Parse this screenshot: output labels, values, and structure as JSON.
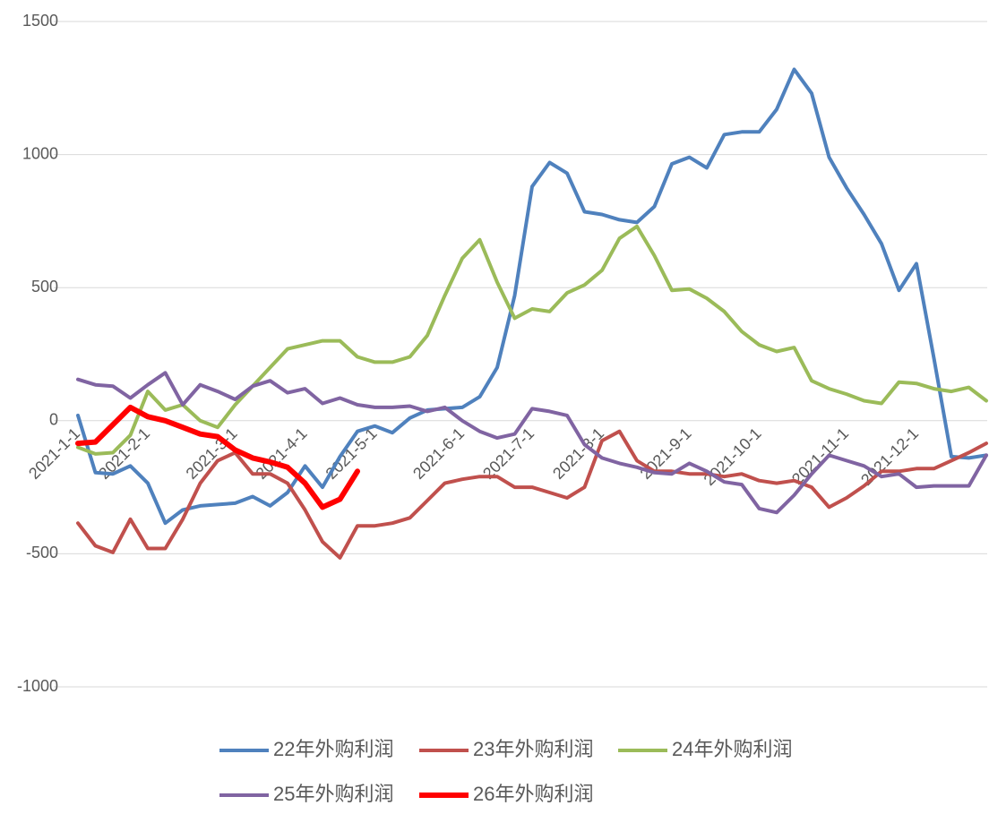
{
  "chart_data": {
    "type": "line",
    "categories": [
      "2021-1-1",
      null,
      null,
      null,
      "2021-2-1",
      null,
      null,
      null,
      null,
      "2021-3-1",
      null,
      null,
      null,
      "2021-4-1",
      null,
      null,
      null,
      "2021-5-1",
      null,
      null,
      null,
      null,
      "2021-6-1",
      null,
      null,
      null,
      "2021-7-1",
      null,
      null,
      null,
      "2021-8-1",
      null,
      null,
      null,
      null,
      "2021-9-1",
      null,
      null,
      null,
      "2021-10-1",
      null,
      null,
      null,
      null,
      "2021-11-1",
      null,
      null,
      null,
      "2021-12-1",
      null,
      null,
      null,
      null
    ],
    "series": [
      {
        "name": "22年外购利润",
        "color": "#4f81bd",
        "width": 4,
        "values": [
          20,
          -195,
          -200,
          -170,
          -235,
          -385,
          -335,
          -320,
          -315,
          -310,
          -285,
          -320,
          -270,
          -170,
          -250,
          -135,
          -40,
          -20,
          -45,
          10,
          40,
          45,
          50,
          90,
          200,
          470,
          880,
          970,
          930,
          785,
          775,
          755,
          745,
          805,
          965,
          990,
          950,
          1075,
          1085,
          1085,
          1170,
          1320,
          1230,
          990,
          875,
          775,
          665,
          490,
          590,
          235,
          -135,
          -140,
          -130
        ]
      },
      {
        "name": "23年外购利润",
        "color": "#c0504d",
        "width": 4,
        "values": [
          -385,
          -470,
          -495,
          -370,
          -480,
          -480,
          -370,
          -235,
          -150,
          -120,
          -200,
          -200,
          -235,
          -335,
          -455,
          -515,
          -395,
          -395,
          -385,
          -365,
          -300,
          -235,
          -220,
          -210,
          -210,
          -250,
          -250,
          -270,
          -290,
          -250,
          -75,
          -40,
          -150,
          -190,
          -190,
          -200,
          -200,
          -210,
          -200,
          -225,
          -235,
          -225,
          -250,
          -325,
          -290,
          -245,
          -190,
          -190,
          -180,
          -180,
          -150,
          -120,
          -85
        ]
      },
      {
        "name": "24年外购利润",
        "color": "#9bbb59",
        "width": 4,
        "values": [
          -100,
          -125,
          -120,
          -55,
          110,
          40,
          60,
          0,
          -25,
          60,
          130,
          200,
          270,
          285,
          300,
          300,
          240,
          220,
          220,
          240,
          320,
          470,
          610,
          680,
          520,
          385,
          420,
          410,
          480,
          510,
          565,
          685,
          730,
          620,
          490,
          495,
          460,
          410,
          335,
          285,
          260,
          275,
          150,
          120,
          100,
          75,
          65,
          145,
          140,
          120,
          110,
          125,
          75
        ]
      },
      {
        "name": "25年外购利润",
        "color": "#8064a2",
        "width": 4,
        "values": [
          155,
          135,
          130,
          85,
          135,
          180,
          60,
          135,
          110,
          80,
          130,
          150,
          105,
          120,
          65,
          85,
          60,
          50,
          50,
          55,
          35,
          50,
          0,
          -40,
          -65,
          -50,
          45,
          35,
          20,
          -90,
          -140,
          -160,
          -175,
          -195,
          -200,
          -160,
          -190,
          -230,
          -240,
          -330,
          -345,
          -280,
          -200,
          -130,
          -150,
          -170,
          -210,
          -200,
          -250,
          -245,
          -245,
          -245,
          -130
        ]
      },
      {
        "name": "26年外购利润",
        "color": "#ff0000",
        "width": 6,
        "values": [
          -85,
          -80,
          -15,
          50,
          15,
          0,
          -25,
          -50,
          -60,
          -110,
          -140,
          -155,
          -175,
          -235,
          -325,
          -295,
          -190,
          null,
          null,
          null,
          null,
          null,
          null,
          null,
          null,
          null,
          null,
          null,
          null,
          null,
          null,
          null,
          null,
          null,
          null,
          null,
          null,
          null,
          null,
          null,
          null,
          null,
          null,
          null,
          null,
          null,
          null,
          null,
          null,
          null,
          null,
          null,
          null
        ]
      }
    ],
    "ylim": [
      -1000,
      1500
    ],
    "yticks": [
      -1000,
      -500,
      0,
      500,
      1000,
      1500
    ],
    "grid": true
  }
}
